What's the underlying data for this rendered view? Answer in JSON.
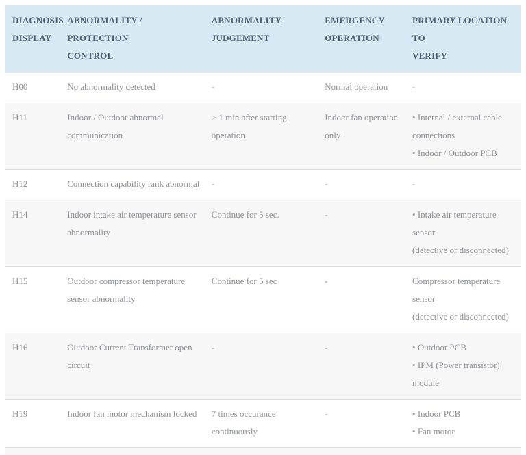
{
  "page": {
    "background_color": "#ffffff"
  },
  "table": {
    "header_bg_color": "#d7e9f3",
    "header_text_color": "#4c6172",
    "body_text_color": "#8d9196",
    "divider_color": "#dcdcdc",
    "zebra_row_color": "#f7f7f7",
    "columns": [
      {
        "key": "display",
        "label": "DIAGNOSIS\nDISPLAY"
      },
      {
        "key": "control",
        "label": "ABNORMALITY / PROTECTION\nCONTROL"
      },
      {
        "key": "judgement",
        "label": "ABNORMALITY\nJUDGEMENT"
      },
      {
        "key": "emergency",
        "label": "EMERGENCY\nOPERATION"
      },
      {
        "key": "locations",
        "label": "PRIMARY LOCATION TO\nVERIFY"
      }
    ],
    "rows": [
      {
        "display": "H00",
        "control": "No abnormality detected",
        "judgement": "-",
        "emergency": "Normal operation",
        "locations": "-"
      },
      {
        "display": "H11",
        "control": "Indoor / Outdoor abnormal\ncommunication",
        "judgement": "> 1 min after starting operation",
        "emergency": "Indoor fan operation\nonly",
        "locations": "• Internal / external cable\nconnections\n• Indoor / Outdoor PCB"
      },
      {
        "display": "H12",
        "control": "Connection capability rank abnormal",
        "judgement": "-",
        "emergency": "-",
        "locations": "-"
      },
      {
        "display": "H14",
        "control": "Indoor intake air temperature sensor\nabnormality",
        "judgement": "Continue for 5 sec.",
        "emergency": "-",
        "locations": "• Intake air temperature sensor\n(detective or disconnected)"
      },
      {
        "display": "H15",
        "control": "Outdoor compressor temperature\nsensor abnormality",
        "judgement": "Continue for 5 sec",
        "emergency": "-",
        "locations": "Compressor temperature sensor\n(detective or disconnected)"
      },
      {
        "display": "H16",
        "control": "Outdoor Current Transformer open\ncircuit",
        "judgement": "-",
        "emergency": "-",
        "locations": "• Outdoor PCB\n• IPM (Power transistor)\nmodule"
      },
      {
        "display": "H19",
        "control": "Indoor fan motor mechanism locked",
        "judgement": "7 times occurance continuously",
        "emergency": "-",
        "locations": "• Indoor PCB\n• Fan motor"
      }
    ]
  }
}
